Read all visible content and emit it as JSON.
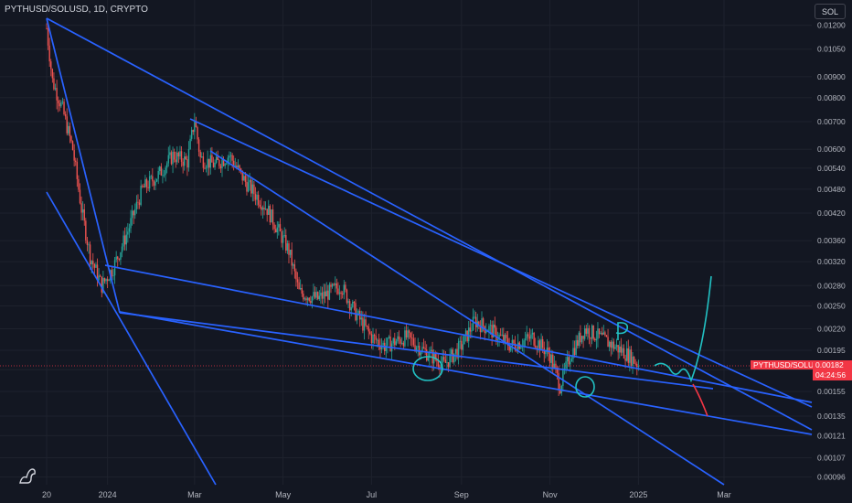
{
  "header": {
    "title": "PYTHUSD/SOLUSD, 1D, CRYPTO"
  },
  "toolbar": {
    "currency_label": "SOL"
  },
  "price": {
    "symbol_badge": "PYTHUSD/SOLUSD",
    "last_price": "0.00182",
    "countdown": "04:24:56"
  },
  "icons": {
    "logo": "tradingview-dino-icon"
  },
  "colors": {
    "background": "#131722",
    "grid": "#1e222d",
    "up": "#26a69a",
    "down": "#ef5350",
    "trendline": "#2962ff",
    "projection_up": "#22c1c3",
    "projection_down": "#f23645",
    "axis_text": "#b2b5be"
  },
  "chart_data": {
    "type": "candlestick",
    "pair": "PYTHUSD/SOLUSD",
    "interval": "1D",
    "y_scale": "log",
    "ylim": [
      0.00092,
      0.0128
    ],
    "y_ticks": [
      "0.01200",
      "0.01050",
      "0.00900",
      "0.00800",
      "0.00700",
      "0.00600",
      "0.00540",
      "0.00480",
      "0.00420",
      "0.00360",
      "0.00320",
      "0.00280",
      "0.00250",
      "0.00220",
      "0.00195",
      "0.00175",
      "0.00155",
      "0.00135",
      "0.00121",
      "0.00107",
      "0.00096"
    ],
    "x_ticks": [
      "20",
      "2024",
      "Mar",
      "May",
      "Jul",
      "Sep",
      "Nov",
      "2025",
      "Mar"
    ],
    "grid": true,
    "price_path": [
      [
        "2023-11-20",
        0.0118
      ],
      [
        "2023-11-24",
        0.0088
      ],
      [
        "2023-12-01",
        0.0075
      ],
      [
        "2023-12-08",
        0.006
      ],
      [
        "2023-12-14",
        0.0043
      ],
      [
        "2023-12-20",
        0.0033
      ],
      [
        "2023-12-28",
        0.0028
      ],
      [
        "2024-01-05",
        0.0031
      ],
      [
        "2024-01-15",
        0.0038
      ],
      [
        "2024-01-25",
        0.0048
      ],
      [
        "2024-02-05",
        0.0052
      ],
      [
        "2024-02-15",
        0.0058
      ],
      [
        "2024-02-25",
        0.0056
      ],
      [
        "2024-03-01",
        0.0071
      ],
      [
        "2024-03-05",
        0.0057
      ],
      [
        "2024-03-15",
        0.0055
      ],
      [
        "2024-03-25",
        0.0058
      ],
      [
        "2024-04-05",
        0.005
      ],
      [
        "2024-04-20",
        0.0043
      ],
      [
        "2024-05-05",
        0.0034
      ],
      [
        "2024-05-12",
        0.0027
      ],
      [
        "2024-05-25",
        0.0026
      ],
      [
        "2024-06-10",
        0.0028
      ],
      [
        "2024-06-20",
        0.0024
      ],
      [
        "2024-07-01",
        0.0021
      ],
      [
        "2024-07-10",
        0.002
      ],
      [
        "2024-07-25",
        0.0021
      ],
      [
        "2024-08-10",
        0.0019
      ],
      [
        "2024-08-20",
        0.0018
      ],
      [
        "2024-09-01",
        0.002
      ],
      [
        "2024-09-10",
        0.0023
      ],
      [
        "2024-09-20",
        0.0022
      ],
      [
        "2024-10-05",
        0.002
      ],
      [
        "2024-10-20",
        0.0021
      ],
      [
        "2024-11-01",
        0.0019
      ],
      [
        "2024-11-08",
        0.0016
      ],
      [
        "2024-11-15",
        0.0019
      ],
      [
        "2024-11-25",
        0.0022
      ],
      [
        "2024-12-05",
        0.0021
      ],
      [
        "2024-12-15",
        0.002
      ],
      [
        "2024-12-25",
        0.0019
      ],
      [
        "2025-01-01",
        0.0018
      ]
    ]
  }
}
